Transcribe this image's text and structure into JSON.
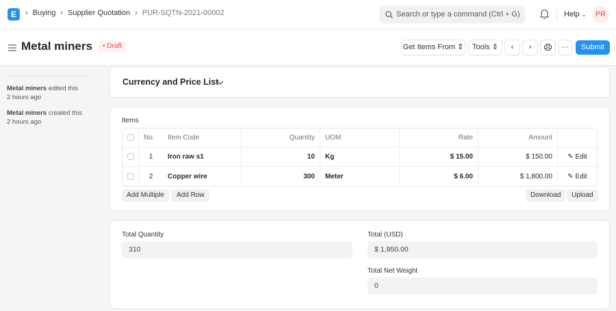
{
  "navbar": {
    "logo": "E",
    "breadcrumbs": [
      "Buying",
      "Supplier Quotation",
      "PUR-SQTN-2021-00002"
    ],
    "search_placeholder": "Search or type a command (Ctrl + G)",
    "help": "Help",
    "avatar": "PR"
  },
  "page": {
    "title": "Metal miners",
    "status": "Draft",
    "status_color": "#e24c4c",
    "get_items": "Get Items From",
    "tools": "Tools",
    "submit": "Submit",
    "accent": "#2490ef"
  },
  "sidebar": {
    "activity": [
      {
        "user": "Metal miners",
        "action": "edited this",
        "time": "2 hours ago"
      },
      {
        "user": "Metal miners",
        "action": "created this",
        "time": "2 hours ago"
      }
    ]
  },
  "section": {
    "title": "Currency and Price List"
  },
  "items": {
    "label": "Items",
    "columns": [
      "No.",
      "Item Code",
      "Quantity",
      "UOM",
      "Rate",
      "Amount"
    ],
    "rows": [
      {
        "no": "1",
        "item_code": "Iron raw s1",
        "qty": "10",
        "uom": "Kg",
        "rate": "$ 15.00",
        "amount": "$ 150.00",
        "edit": "Edit"
      },
      {
        "no": "2",
        "item_code": "Copper wire",
        "qty": "300",
        "uom": "Meter",
        "rate": "$ 6.00",
        "amount": "$ 1,800.00",
        "edit": "Edit"
      }
    ],
    "add_multiple": "Add Multiple",
    "add_row": "Add Row",
    "download": "Download",
    "upload": "Upload"
  },
  "totals": {
    "total_quantity_label": "Total Quantity",
    "total_quantity": "310",
    "total_label": "Total (USD)",
    "total": "$ 1,950.00",
    "net_weight_label": "Total Net Weight",
    "net_weight": "0"
  }
}
